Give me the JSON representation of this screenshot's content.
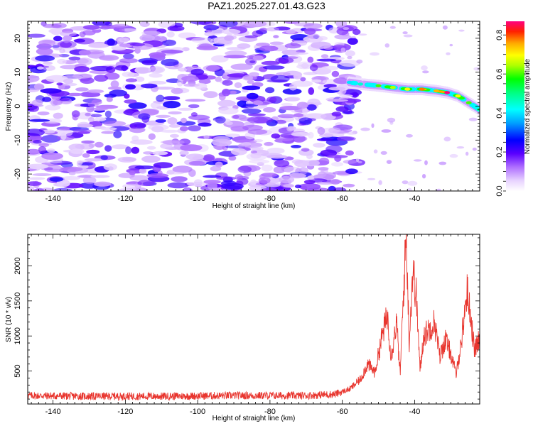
{
  "title": "PAZ1.2025.227.01.43.G23",
  "chart_data": [
    {
      "type": "heatmap",
      "xlabel": "Height of straight line (km)",
      "ylabel": "Frequency (Hz)",
      "xlim": [
        -147,
        -22
      ],
      "ylim": [
        -25,
        25
      ],
      "xticks": [
        -140,
        -120,
        -100,
        -80,
        -60,
        -40
      ],
      "yticks": [
        -20,
        -10,
        0,
        10,
        20
      ],
      "colorbar": {
        "label": "Normalized spectral amplitude",
        "range": [
          0.0,
          0.87
        ],
        "ticks": [
          0.0,
          0.2,
          0.4,
          0.6,
          0.8
        ]
      },
      "ridge": {
        "description_values": [
          {
            "x": -58,
            "y": 7
          },
          {
            "x": -55,
            "y": 6.5
          },
          {
            "x": -50,
            "y": 6
          },
          {
            "x": -46,
            "y": 5.5
          },
          {
            "x": -42,
            "y": 5
          },
          {
            "x": -38,
            "y": 5
          },
          {
            "x": -34,
            "y": 4.5
          },
          {
            "x": -31,
            "y": 4
          },
          {
            "x": -28,
            "y": 3
          },
          {
            "x": -25,
            "y": 1
          },
          {
            "x": -22,
            "y": -1
          }
        ],
        "peak_amplitudes": [
          0.4,
          0.45,
          0.6,
          0.65,
          0.7,
          0.78,
          0.75,
          0.87,
          0.7,
          0.6,
          0.5
        ]
      },
      "noise_amplitude_range": [
        0.05,
        0.25
      ],
      "noise_x_range": [
        -147,
        -60
      ]
    },
    {
      "type": "line",
      "xlabel": "Height of straight line (km)",
      "ylabel": "SNR (10 * v/v)",
      "xlim": [
        -147,
        -22
      ],
      "ylim": [
        30,
        2450
      ],
      "xticks": [
        -140,
        -120,
        -100,
        -80,
        -60,
        -40
      ],
      "yticks": [
        500,
        1000,
        1500,
        2000
      ],
      "color": "#e8352e",
      "profile": [
        {
          "x": -147,
          "y": 150
        },
        {
          "x": -130,
          "y": 140
        },
        {
          "x": -110,
          "y": 140
        },
        {
          "x": -90,
          "y": 150
        },
        {
          "x": -70,
          "y": 150
        },
        {
          "x": -62,
          "y": 170
        },
        {
          "x": -58,
          "y": 240
        },
        {
          "x": -55,
          "y": 380
        },
        {
          "x": -53,
          "y": 600
        },
        {
          "x": -51,
          "y": 480
        },
        {
          "x": -49,
          "y": 1000
        },
        {
          "x": -47.5,
          "y": 1300
        },
        {
          "x": -46.5,
          "y": 700
        },
        {
          "x": -45,
          "y": 1200
        },
        {
          "x": -44,
          "y": 450
        },
        {
          "x": -43,
          "y": 1700
        },
        {
          "x": -42.3,
          "y": 2450
        },
        {
          "x": -41.5,
          "y": 900
        },
        {
          "x": -40.5,
          "y": 1950
        },
        {
          "x": -39.5,
          "y": 1550
        },
        {
          "x": -38.5,
          "y": 500
        },
        {
          "x": -37.5,
          "y": 1000
        },
        {
          "x": -36,
          "y": 1100
        },
        {
          "x": -34.5,
          "y": 1200
        },
        {
          "x": -33,
          "y": 700
        },
        {
          "x": -31.5,
          "y": 950
        },
        {
          "x": -30,
          "y": 750
        },
        {
          "x": -28.5,
          "y": 450
        },
        {
          "x": -27,
          "y": 950
        },
        {
          "x": -25.5,
          "y": 1650
        },
        {
          "x": -24.5,
          "y": 1300
        },
        {
          "x": -23.5,
          "y": 800
        },
        {
          "x": -22,
          "y": 950
        }
      ]
    }
  ]
}
